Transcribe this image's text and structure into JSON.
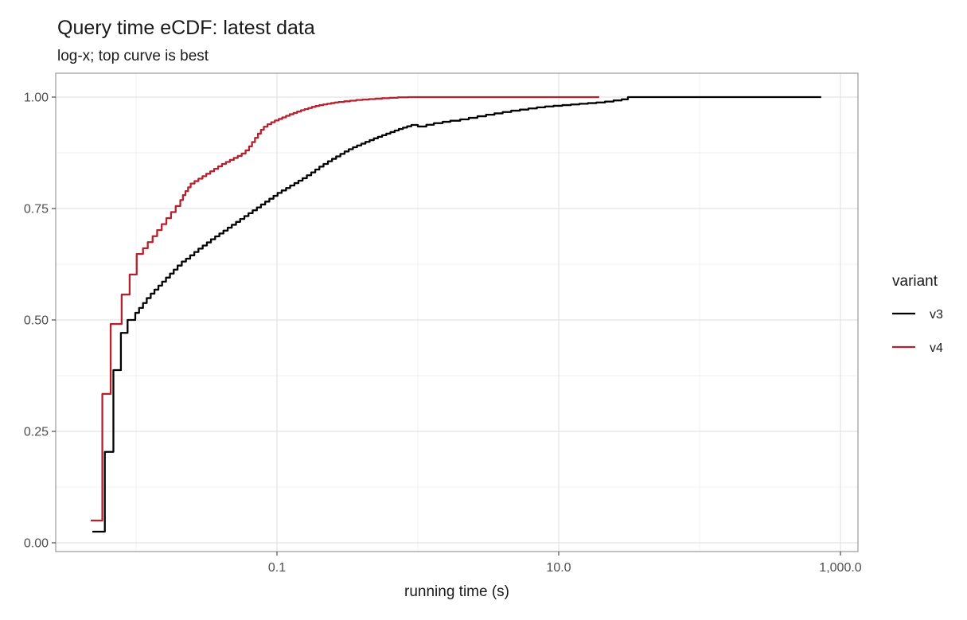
{
  "chart_data": {
    "type": "line",
    "subtype": "ecdf-step",
    "title": "Query time eCDF: latest data",
    "subtitle": "log-x; top curve is best",
    "xlabel": "running time (s)",
    "ylabel": "",
    "x_scale": "log10",
    "xlim": [
      0.0027,
      1330
    ],
    "ylim": [
      -0.02,
      1.054
    ],
    "grid": true,
    "x_ticks": {
      "values": [
        0.1,
        10,
        1000
      ],
      "labels": [
        "0.1",
        "10.0",
        "1,000.0"
      ]
    },
    "x_minor_ticks": [
      0.01,
      1,
      100
    ],
    "y_ticks": {
      "values": [
        0,
        0.25,
        0.5,
        0.75,
        1
      ],
      "labels": [
        "0.00",
        "0.25",
        "0.50",
        "0.75",
        "1.00"
      ]
    },
    "y_minor_ticks": [
      0.125,
      0.375,
      0.625,
      0.875
    ],
    "colors": {
      "panel_border": "#9a9a9a",
      "grid_major": "#e3e3e3",
      "grid_minor": "#ededed",
      "tick_mark": "#4d4d4d",
      "series_v3": "#000000",
      "series_v4": "#b5212e"
    },
    "legend": {
      "title": "variant",
      "position": "right",
      "entries": [
        {
          "label": "v3",
          "color": "#000000"
        },
        {
          "label": "v4",
          "color": "#b5212e"
        }
      ]
    },
    "series": [
      {
        "name": "v3",
        "color": "#000000",
        "points": [
          [
            0.00489,
            0.025
          ],
          [
            0.006,
            0.204
          ],
          [
            0.0069,
            0.3875
          ],
          [
            0.0078,
            0.471
          ],
          [
            0.0087,
            0.5
          ],
          [
            0.00987,
            0.516
          ],
          [
            0.0105,
            0.527
          ],
          [
            0.0112,
            0.538
          ],
          [
            0.0119,
            0.549
          ],
          [
            0.0127,
            0.559
          ],
          [
            0.0135,
            0.568
          ],
          [
            0.0144,
            0.577
          ],
          [
            0.0153,
            0.586
          ],
          [
            0.0163,
            0.595
          ],
          [
            0.0174,
            0.604
          ],
          [
            0.0185,
            0.613
          ],
          [
            0.0197,
            0.622
          ],
          [
            0.0211,
            0.631
          ],
          [
            0.0226,
            0.6375
          ],
          [
            0.0242,
            0.645
          ],
          [
            0.0259,
            0.6525
          ],
          [
            0.0277,
            0.66
          ],
          [
            0.0297,
            0.667
          ],
          [
            0.0318,
            0.674
          ],
          [
            0.034,
            0.681
          ],
          [
            0.0364,
            0.6875
          ],
          [
            0.039,
            0.694
          ],
          [
            0.0417,
            0.7005
          ],
          [
            0.0447,
            0.707
          ],
          [
            0.0478,
            0.7135
          ],
          [
            0.0512,
            0.72
          ],
          [
            0.0548,
            0.7265
          ],
          [
            0.0587,
            0.733
          ],
          [
            0.0628,
            0.7395
          ],
          [
            0.0672,
            0.746
          ],
          [
            0.072,
            0.7525
          ],
          [
            0.077,
            0.759
          ],
          [
            0.0825,
            0.7655
          ],
          [
            0.0883,
            0.772
          ],
          [
            0.0945,
            0.7785
          ],
          [
            0.101,
            0.785
          ],
          [
            0.108,
            0.7905
          ],
          [
            0.116,
            0.796
          ],
          [
            0.124,
            0.8015
          ],
          [
            0.133,
            0.807
          ],
          [
            0.142,
            0.8125
          ],
          [
            0.152,
            0.818
          ],
          [
            0.163,
            0.8245
          ],
          [
            0.175,
            0.831
          ],
          [
            0.187,
            0.8375
          ],
          [
            0.2,
            0.844
          ],
          [
            0.214,
            0.85
          ],
          [
            0.23,
            0.856
          ],
          [
            0.246,
            0.8615
          ],
          [
            0.263,
            0.867
          ],
          [
            0.282,
            0.8725
          ],
          [
            0.302,
            0.878
          ],
          [
            0.323,
            0.883
          ],
          [
            0.346,
            0.8875
          ],
          [
            0.37,
            0.8915
          ],
          [
            0.397,
            0.8955
          ],
          [
            0.425,
            0.8995
          ],
          [
            0.455,
            0.9035
          ],
          [
            0.487,
            0.9075
          ],
          [
            0.521,
            0.911
          ],
          [
            0.558,
            0.9145
          ],
          [
            0.597,
            0.918
          ],
          [
            0.639,
            0.9215
          ],
          [
            0.684,
            0.925
          ],
          [
            0.732,
            0.9285
          ],
          [
            0.784,
            0.9315
          ],
          [
            0.839,
            0.9345
          ],
          [
            0.9,
            0.9375
          ],
          [
            1.0,
            0.934
          ],
          [
            1.15,
            0.938
          ],
          [
            1.3,
            0.9415
          ],
          [
            1.5,
            0.9445
          ],
          [
            1.7,
            0.947
          ],
          [
            2.0,
            0.95
          ],
          [
            2.3,
            0.9535
          ],
          [
            2.65,
            0.957
          ],
          [
            3.05,
            0.9605
          ],
          [
            3.5,
            0.9635
          ],
          [
            4.0,
            0.9665
          ],
          [
            4.6,
            0.9695
          ],
          [
            5.3,
            0.972
          ],
          [
            6.1,
            0.9745
          ],
          [
            7.0,
            0.977
          ],
          [
            8.0,
            0.979
          ],
          [
            9.2,
            0.9805
          ],
          [
            10.6,
            0.982
          ],
          [
            12.2,
            0.9835
          ],
          [
            14.0,
            0.985
          ],
          [
            16.1,
            0.9865
          ],
          [
            18.5,
            0.988
          ],
          [
            21.3,
            0.99
          ],
          [
            24.5,
            0.9925
          ],
          [
            28.0,
            0.995
          ],
          [
            31.0,
            1.0
          ],
          [
            730.0,
            1.0
          ]
        ]
      },
      {
        "name": "v4",
        "color": "#b5212e",
        "points": [
          [
            0.00476,
            0.05
          ],
          [
            0.00576,
            0.334
          ],
          [
            0.0066,
            0.491
          ],
          [
            0.0079,
            0.557
          ],
          [
            0.009,
            0.602
          ],
          [
            0.0101,
            0.648
          ],
          [
            0.0112,
            0.661
          ],
          [
            0.0121,
            0.6745
          ],
          [
            0.0131,
            0.688
          ],
          [
            0.0141,
            0.7015
          ],
          [
            0.0152,
            0.715
          ],
          [
            0.0164,
            0.7285
          ],
          [
            0.0177,
            0.742
          ],
          [
            0.0191,
            0.7555
          ],
          [
            0.0206,
            0.769
          ],
          [
            0.0215,
            0.78
          ],
          [
            0.0224,
            0.789
          ],
          [
            0.0234,
            0.7975
          ],
          [
            0.0244,
            0.806
          ],
          [
            0.026,
            0.8115
          ],
          [
            0.0277,
            0.817
          ],
          [
            0.0296,
            0.8225
          ],
          [
            0.0315,
            0.828
          ],
          [
            0.0336,
            0.8335
          ],
          [
            0.0358,
            0.839
          ],
          [
            0.0382,
            0.8445
          ],
          [
            0.0407,
            0.85
          ],
          [
            0.0434,
            0.8545
          ],
          [
            0.0463,
            0.859
          ],
          [
            0.0494,
            0.8635
          ],
          [
            0.0527,
            0.868
          ],
          [
            0.0562,
            0.8735
          ],
          [
            0.0599,
            0.8805
          ],
          [
            0.0634,
            0.8895
          ],
          [
            0.0665,
            0.899
          ],
          [
            0.0698,
            0.9085
          ],
          [
            0.0733,
            0.918
          ],
          [
            0.0769,
            0.9265
          ],
          [
            0.0807,
            0.9335
          ],
          [
            0.0857,
            0.939
          ],
          [
            0.091,
            0.9435
          ],
          [
            0.0966,
            0.9475
          ],
          [
            0.103,
            0.951
          ],
          [
            0.109,
            0.9545
          ],
          [
            0.116,
            0.958
          ],
          [
            0.123,
            0.9615
          ],
          [
            0.131,
            0.9645
          ],
          [
            0.139,
            0.9675
          ],
          [
            0.148,
            0.9705
          ],
          [
            0.157,
            0.973
          ],
          [
            0.167,
            0.9755
          ],
          [
            0.177,
            0.978
          ],
          [
            0.188,
            0.98
          ],
          [
            0.2,
            0.982
          ],
          [
            0.213,
            0.9835
          ],
          [
            0.227,
            0.985
          ],
          [
            0.242,
            0.9865
          ],
          [
            0.257,
            0.988
          ],
          [
            0.274,
            0.989
          ],
          [
            0.3,
            0.9905
          ],
          [
            0.33,
            0.992
          ],
          [
            0.365,
            0.9935
          ],
          [
            0.405,
            0.9945
          ],
          [
            0.45,
            0.9955
          ],
          [
            0.5,
            0.9965
          ],
          [
            0.557,
            0.9975
          ],
          [
            0.63,
            0.9985
          ],
          [
            0.72,
            0.9995
          ],
          [
            0.855,
            1.0
          ],
          [
            19.4,
            1.0
          ]
        ]
      }
    ]
  }
}
